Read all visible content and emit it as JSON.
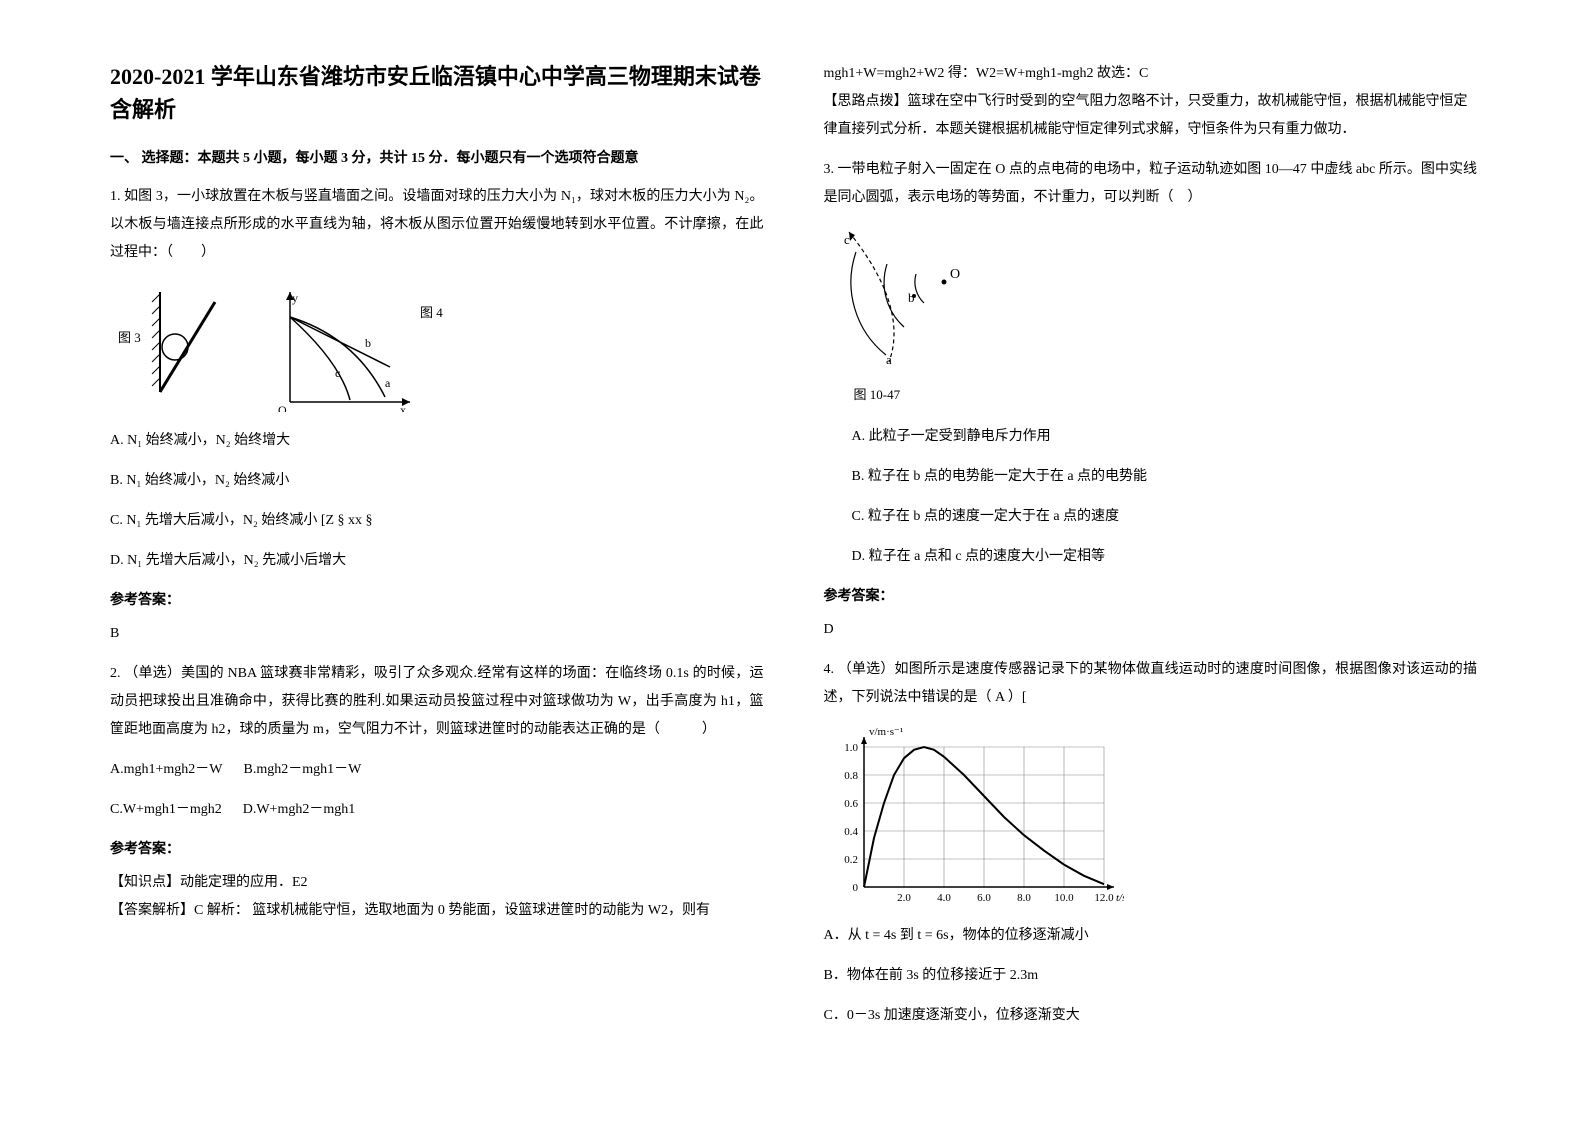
{
  "title": "2020-2021 学年山东省潍坊市安丘临浯镇中心中学高三物理期末试卷含解析",
  "section1_header": "一、 选择题：本题共 5 小题，每小题 3 分，共计 15 分．每小题只有一个选项符合题意",
  "q1": {
    "text": "1. 如图 3，一小球放置在木板与竖直墙面之间。设墙面对球的压力大小为 N₁，球对木板的压力大小为 N₂。以木板与墙连接点所形成的水平直线为轴，将木板从图示位置开始缓慢地转到水平位置。不计摩擦，在此过程中：（　　）",
    "fig_left_label": "图 3",
    "fig_right_label": "图 4",
    "optA": "A. N₁ 始终减小，N₂ 始终增大",
    "optB": "B. N₁ 始终减小，N₂ 始终减小",
    "optC": "C. N₁ 先增大后减小，N₂ 始终减小 [Z § xx §",
    "optD": "D. N₁ 先增大后减小，N₂ 先减小后增大",
    "answer_label": "参考答案：",
    "answer": "B"
  },
  "q2": {
    "text": "2. （单选）美国的 NBA 篮球赛非常精彩，吸引了众多观众.经常有这样的场面：在临终场 0.1s 的时候，运动员把球投出且准确命中，获得比赛的胜利.如果运动员投篮过程中对篮球做功为 W，出手高度为 h1，篮筐距地面高度为 h2，球的质量为 m，空气阻力不计，则篮球进筐时的动能表达正确的是（　　　）",
    "optA": "A.mgh1+mgh2－W",
    "optB": "B.mgh2－mgh1－W",
    "optC": "C.W+mgh1－mgh2",
    "optD": "D.W+mgh2－mgh1",
    "answer_label": "参考答案：",
    "note1": "【知识点】动能定理的应用．E2",
    "note2": "【答案解析】C 解析： 篮球机械能守恒，选取地面为 0 势能面，设篮球进筐时的动能为 W2，则有"
  },
  "col2_top": {
    "line1": "mgh1+W=mgh2+W2 得：W2=W+mgh1-mgh2 故选：C",
    "line2": "【思路点拨】篮球在空中飞行时受到的空气阻力忽略不计，只受重力，故机械能守恒，根据机械能守恒定律直接列式分析．本题关键根据机械能守恒定律列式求解，守恒条件为只有重力做功．"
  },
  "q3": {
    "text": "3. 一带电粒子射入一固定在 O 点的点电荷的电场中，粒子运动轨迹如图 10—47 中虚线 abc 所示。图中实线是同心圆弧，表示电场的等势面，不计重力，可以判断（　）",
    "fig_label": "图 10-47",
    "optA": "A. 此粒子一定受到静电斥力作用",
    "optB": "B. 粒子在 b 点的电势能一定大于在 a 点的电势能",
    "optC": "C. 粒子在 b 点的速度一定大于在 a 点的速度",
    "optD": "D. 粒子在 a 点和 c 点的速度大小一定相等",
    "answer_label": "参考答案：",
    "answer": "D"
  },
  "q4": {
    "text": "4. （单选）如图所示是速度传感器记录下的某物体做直线运动时的速度时间图像，根据图像对该运动的描述，下列说法中错误的是（ A ）[",
    "optA": "A．从 t = 4s 到 t = 6s，物体的位移逐渐减小",
    "optB": "B．物体在前 3s 的位移接近于 2.3m",
    "optC": "C．0－3s 加速度逐渐变小，位移逐渐变大"
  },
  "chart": {
    "ylabel": "v/m·s⁻¹",
    "xlabel": "t/s",
    "xticks": [
      "2.0",
      "4.0",
      "6.0",
      "8.0",
      "10.0",
      "12.0"
    ],
    "yticks": [
      "0",
      "0.2",
      "0.4",
      "0.6",
      "0.8",
      "1.0"
    ],
    "grid_color": "#888888",
    "line_color": "#000000",
    "bg_color": "#ffffff"
  }
}
